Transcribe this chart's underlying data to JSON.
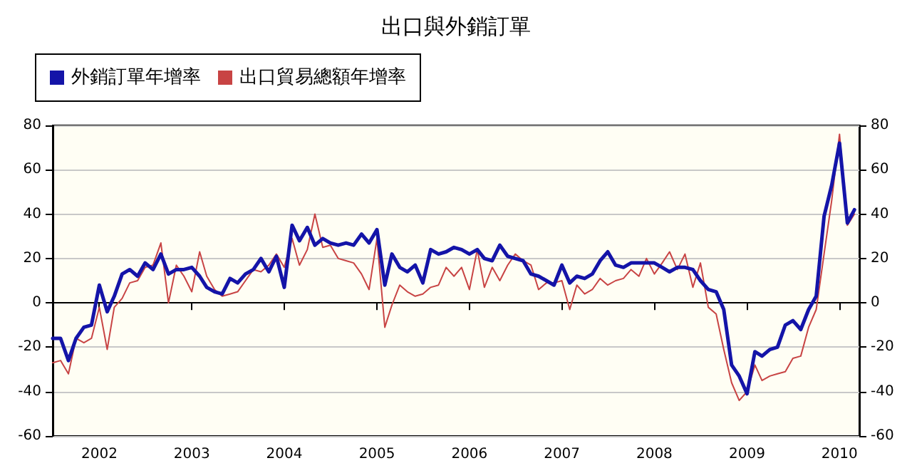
{
  "chart_data": {
    "type": "line",
    "title": "出口與外銷訂單",
    "x": [
      "2001-07",
      "2001-08",
      "2001-09",
      "2001-10",
      "2001-11",
      "2001-12",
      "2002-01",
      "2002-02",
      "2002-03",
      "2002-04",
      "2002-05",
      "2002-06",
      "2002-07",
      "2002-08",
      "2002-09",
      "2002-10",
      "2002-11",
      "2002-12",
      "2003-01",
      "2003-02",
      "2003-03",
      "2003-04",
      "2003-05",
      "2003-06",
      "2003-07",
      "2003-08",
      "2003-09",
      "2003-10",
      "2003-11",
      "2003-12",
      "2004-01",
      "2004-02",
      "2004-03",
      "2004-04",
      "2004-05",
      "2004-06",
      "2004-07",
      "2004-08",
      "2004-09",
      "2004-10",
      "2004-11",
      "2004-12",
      "2005-01",
      "2005-02",
      "2005-03",
      "2005-04",
      "2005-05",
      "2005-06",
      "2005-07",
      "2005-08",
      "2005-09",
      "2005-10",
      "2005-11",
      "2005-12",
      "2006-01",
      "2006-02",
      "2006-03",
      "2006-04",
      "2006-05",
      "2006-06",
      "2006-07",
      "2006-08",
      "2006-09",
      "2006-10",
      "2006-11",
      "2006-12",
      "2007-01",
      "2007-02",
      "2007-03",
      "2007-04",
      "2007-05",
      "2007-06",
      "2007-07",
      "2007-08",
      "2007-09",
      "2007-10",
      "2007-11",
      "2007-12",
      "2008-01",
      "2008-02",
      "2008-03",
      "2008-04",
      "2008-05",
      "2008-06",
      "2008-07",
      "2008-08",
      "2008-09",
      "2008-10",
      "2008-11",
      "2008-12",
      "2009-01",
      "2009-02",
      "2009-03",
      "2009-04",
      "2009-05",
      "2009-06",
      "2009-07",
      "2009-08",
      "2009-09",
      "2009-10",
      "2009-11",
      "2009-12",
      "2010-01",
      "2010-02",
      "2010-03"
    ],
    "series": [
      {
        "name": "外銷訂單年增率",
        "color": "#1414a8",
        "values": [
          -16,
          -16,
          -26,
          -16,
          -11,
          -10,
          8,
          -4,
          3,
          13,
          15,
          12,
          18,
          15,
          22,
          13,
          15,
          15,
          16,
          12,
          7,
          5,
          4,
          11,
          9,
          13,
          15,
          20,
          14,
          21,
          7,
          35,
          28,
          34,
          26,
          29,
          27,
          26,
          27,
          26,
          31,
          27,
          33,
          8,
          22,
          16,
          14,
          17,
          9,
          24,
          22,
          23,
          25,
          24,
          22,
          24,
          20,
          19,
          26,
          21,
          20,
          19,
          13,
          12,
          10,
          8,
          17,
          9,
          12,
          11,
          13,
          19,
          23,
          17,
          16,
          18,
          18,
          18,
          18,
          16,
          14,
          16,
          16,
          15,
          10,
          6,
          5,
          -3,
          -28,
          -33,
          -41,
          -22,
          -24,
          -21,
          -20,
          -10,
          -8,
          -12,
          -3,
          3,
          39,
          53,
          72,
          36,
          42
        ]
      },
      {
        "name": "出口貿易總額年增率",
        "color": "#c84444",
        "values": [
          -27,
          -26,
          -32,
          -16,
          -18,
          -16,
          -2,
          -21,
          -2,
          2,
          9,
          10,
          16,
          17,
          27,
          0,
          17,
          12,
          5,
          23,
          12,
          6,
          3,
          4,
          5,
          10,
          15,
          14,
          17,
          22,
          16,
          29,
          17,
          24,
          40,
          25,
          26,
          20,
          19,
          18,
          13,
          6,
          29,
          -11,
          -1,
          8,
          5,
          3,
          4,
          7,
          8,
          16,
          12,
          16,
          6,
          24,
          7,
          16,
          10,
          17,
          22,
          19,
          17,
          6,
          9,
          9,
          10,
          -3,
          8,
          4,
          6,
          11,
          8,
          10,
          11,
          15,
          12,
          20,
          13,
          18,
          23,
          15,
          22,
          7,
          18,
          -2,
          -5,
          -21,
          -36,
          -44,
          -40,
          -28,
          -35,
          -33,
          -32,
          -31,
          -25,
          -24,
          -11,
          -3,
          22,
          46,
          76,
          35,
          40
        ]
      }
    ],
    "xlim": [
      "2001-07",
      "2010-03-20"
    ],
    "xticks": [
      "2002",
      "2003",
      "2004",
      "2005",
      "2006",
      "2007",
      "2008",
      "2009",
      "2010"
    ],
    "ylim": [
      -60,
      80
    ],
    "yticks": [
      -60,
      -40,
      -20,
      0,
      20,
      40,
      60,
      80
    ],
    "y2lim": [
      -60,
      80
    ],
    "y2ticks": [
      -60,
      -40,
      -20,
      0,
      20,
      40,
      60,
      80
    ],
    "grid": "y",
    "legend": "top left",
    "marker": "none",
    "line_style": "solid"
  }
}
